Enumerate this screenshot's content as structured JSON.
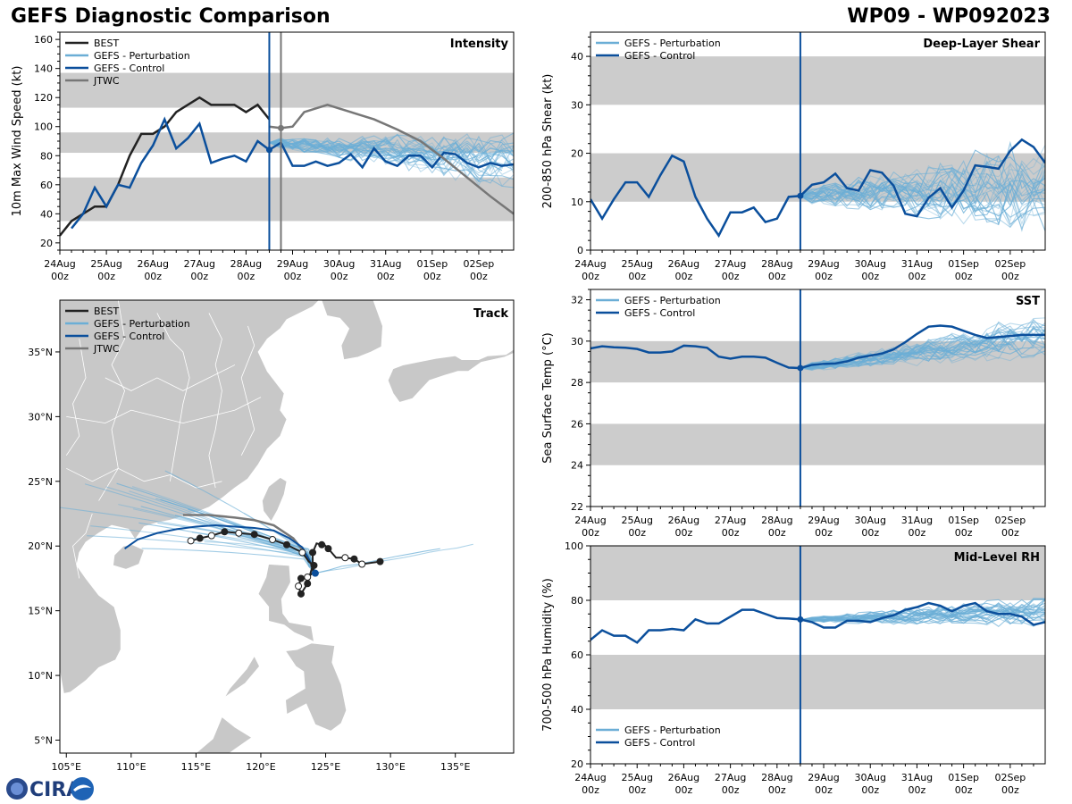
{
  "header": {
    "title_left": "GEFS Diagnostic Comparison",
    "title_right": "WP09 - WP092023"
  },
  "logo": {
    "text": "CIRA"
  },
  "colors": {
    "best": "#222222",
    "pert": "#6baed6",
    "control": "#0b4f9c",
    "jtwc": "#777777",
    "band": "#cccccc",
    "land": "#c8c8c8",
    "vline_fcst": "#0b4f9c",
    "vline_jtwc": "#777777"
  },
  "time_axis": {
    "min_day": 0,
    "max_day": 9.75,
    "init_day": 4.5,
    "ticks": [
      0,
      1,
      2,
      3,
      4,
      5,
      6,
      7,
      8,
      9
    ],
    "tick_labels": [
      "24Aug",
      "25Aug",
      "26Aug",
      "27Aug",
      "28Aug",
      "29Aug",
      "30Aug",
      "31Aug",
      "01Sep",
      "02Sep"
    ],
    "tick_sublabel": "00z"
  },
  "legend": {
    "best": "BEST",
    "pert": "GEFS - Perturbation",
    "control": "GEFS - Control",
    "jtwc": "JTWC"
  },
  "chart_data": [
    {
      "id": "intensity",
      "type": "line",
      "title": "Intensity",
      "ylabel": "10m Max Wind Speed (kt)",
      "ylim": [
        15,
        165
      ],
      "yticks": [
        20,
        40,
        60,
        80,
        100,
        120,
        140,
        160
      ],
      "minor": 5,
      "bands": [
        [
          35,
          65
        ],
        [
          82,
          96
        ],
        [
          113,
          137
        ]
      ],
      "jtwc_vline_day": 4.75,
      "series": [
        {
          "name": "BEST",
          "x": [
            0,
            0.25,
            0.5,
            0.75,
            1,
            1.25,
            1.5,
            1.75,
            2,
            2.25,
            2.5,
            2.75,
            3,
            3.25,
            3.5,
            3.75,
            4,
            4.25,
            4.5
          ],
          "y": [
            25,
            35,
            40,
            45,
            45,
            60,
            80,
            95,
            95,
            100,
            110,
            115,
            120,
            115,
            115,
            115,
            110,
            115,
            105
          ]
        },
        {
          "name": "GEFS - Control",
          "x": [
            0.25,
            0.5,
            0.75,
            1,
            1.25,
            1.5,
            1.75,
            2,
            2.25,
            2.5,
            2.75,
            3,
            3.25,
            3.5,
            3.75,
            4,
            4.25,
            4.5,
            4.75,
            5,
            5.25,
            5.5,
            5.75,
            6,
            6.25,
            6.5,
            6.75,
            7,
            7.25,
            7.5,
            7.75,
            8,
            8.25,
            8.5,
            8.75,
            9,
            9.25,
            9.5,
            9.75
          ],
          "y": [
            30,
            40,
            58,
            45,
            60,
            58,
            75,
            87,
            105,
            85,
            92,
            102,
            75,
            78,
            80,
            76,
            90,
            84,
            89,
            73,
            73,
            76,
            73,
            75,
            81,
            72,
            85,
            76,
            73,
            80,
            80,
            72,
            82,
            81,
            75,
            72,
            75,
            73,
            74
          ]
        },
        {
          "name": "JTWC",
          "x": [
            4.5,
            4.75,
            5,
            5.25,
            5.75,
            6.25,
            6.75,
            7.25,
            7.75,
            8.25,
            8.75,
            9.25,
            9.75
          ],
          "y": [
            100,
            99,
            100,
            110,
            115,
            110,
            105,
            98,
            90,
            78,
            65,
            52,
            40
          ]
        }
      ],
      "pert_start": 89,
      "pert_spread": 18,
      "pert_drift": -12
    },
    {
      "id": "shear",
      "type": "line",
      "title": "Deep-Layer Shear",
      "ylabel": "200-850 hPa Shear (kt)",
      "ylim": [
        0,
        45
      ],
      "yticks": [
        0,
        10,
        20,
        30,
        40
      ],
      "minor": 2,
      "bands": [
        [
          10,
          20
        ],
        [
          30,
          40
        ]
      ],
      "series": [
        {
          "name": "GEFS - Control",
          "x": [
            0,
            0.25,
            0.5,
            0.75,
            1,
            1.25,
            1.5,
            1.75,
            2,
            2.25,
            2.5,
            2.75,
            3,
            3.25,
            3.5,
            3.75,
            4,
            4.25,
            4.5,
            4.75,
            5,
            5.25,
            5.5,
            5.75,
            6,
            6.25,
            6.5,
            6.75,
            7,
            7.25,
            7.5,
            7.75,
            8,
            8.25,
            8.5,
            8.75,
            9,
            9.25,
            9.5,
            9.75
          ],
          "y": [
            10.5,
            6.5,
            10.5,
            14,
            14,
            11,
            15.5,
            19.5,
            18.3,
            11,
            6.5,
            3,
            7.8,
            7.8,
            8.8,
            5.8,
            6.5,
            11,
            11.2,
            13.5,
            14,
            15.8,
            12.8,
            12.3,
            16.5,
            16,
            13.3,
            7.5,
            7,
            10.8,
            12.8,
            8.8,
            12.3,
            17.5,
            17.2,
            16.8,
            20.5,
            22.8,
            21.3,
            18
          ]
        }
      ],
      "pert_start": 11.2,
      "pert_spread": 9,
      "pert_drift": 3
    },
    {
      "id": "sst",
      "type": "line",
      "title": "SST",
      "ylabel": "Sea Surface Temp (°C)",
      "ylim": [
        22,
        32.5
      ],
      "yticks": [
        22,
        24,
        26,
        28,
        30,
        32
      ],
      "minor": 0.5,
      "bands": [
        [
          24,
          26
        ],
        [
          28,
          30
        ]
      ],
      "series": [
        {
          "name": "GEFS - Control",
          "x": [
            0,
            0.25,
            0.5,
            0.75,
            1,
            1.25,
            1.5,
            1.75,
            2,
            2.25,
            2.5,
            2.75,
            3,
            3.25,
            3.5,
            3.75,
            4,
            4.25,
            4.5,
            4.75,
            5,
            5.25,
            5.5,
            5.75,
            6,
            6.25,
            6.5,
            6.75,
            7,
            7.25,
            7.5,
            7.75,
            8,
            8.25,
            8.5,
            8.75,
            9,
            9.25,
            9.5,
            9.75
          ],
          "y": [
            29.65,
            29.75,
            29.7,
            29.68,
            29.62,
            29.45,
            29.45,
            29.5,
            29.78,
            29.75,
            29.68,
            29.25,
            29.15,
            29.25,
            29.25,
            29.2,
            28.95,
            28.72,
            28.7,
            28.85,
            28.9,
            28.92,
            29.02,
            29.2,
            29.3,
            29.4,
            29.6,
            29.95,
            30.35,
            30.7,
            30.75,
            30.7,
            30.5,
            30.3,
            30.15,
            30.2,
            30.25,
            30.3,
            30.3,
            30.3
          ]
        }
      ],
      "pert_start": 28.7,
      "pert_spread": 1.0,
      "pert_drift": 1.5
    },
    {
      "id": "rh",
      "type": "line",
      "title": "Mid-Level RH",
      "ylabel": "700-500 hPa Humidity (%)",
      "ylim": [
        20,
        100
      ],
      "yticks": [
        20,
        40,
        60,
        80,
        100
      ],
      "minor": 5,
      "bands": [
        [
          40,
          60
        ],
        [
          80,
          100
        ]
      ],
      "series": [
        {
          "name": "GEFS - Control",
          "x": [
            0,
            0.25,
            0.5,
            0.75,
            1,
            1.25,
            1.5,
            1.75,
            2,
            2.25,
            2.5,
            2.75,
            3,
            3.25,
            3.5,
            3.75,
            4,
            4.25,
            4.5,
            4.75,
            5,
            5.25,
            5.5,
            5.75,
            6,
            6.25,
            6.5,
            6.75,
            7,
            7.25,
            7.5,
            7.75,
            8,
            8.25,
            8.5,
            8.75,
            9,
            9.25,
            9.5,
            9.75
          ],
          "y": [
            65.5,
            69,
            67,
            67,
            64.5,
            69,
            69,
            69.5,
            69,
            73,
            71.5,
            71.5,
            74,
            76.5,
            76.5,
            75,
            73.5,
            73.3,
            73,
            72,
            70,
            70,
            72.5,
            72.5,
            72,
            73.5,
            74.5,
            76.5,
            77.5,
            79,
            78,
            76,
            78,
            79,
            76,
            75,
            75,
            74,
            71,
            72
          ]
        }
      ],
      "pert_start": 72.8,
      "pert_spread": 5,
      "pert_drift": 3
    },
    {
      "id": "track",
      "type": "scatter",
      "title": "Track",
      "xlim": [
        104.5,
        139.5
      ],
      "ylim": [
        4,
        39
      ],
      "xticks": [
        105,
        110,
        115,
        120,
        125,
        130,
        135
      ],
      "xtick_labels": [
        "105°E",
        "110°E",
        "115°E",
        "120°E",
        "125°E",
        "130°E",
        "135°E"
      ],
      "yticks": [
        5,
        10,
        15,
        20,
        25,
        30,
        35
      ],
      "ytick_labels": [
        "5°N",
        "10°N",
        "15°N",
        "20°N",
        "25°N",
        "30°N",
        "35°N"
      ],
      "best_track": {
        "lon": [
          129.2,
          128.5,
          127.8,
          127.2,
          126.5,
          125.8,
          125.2,
          124.9,
          124.7,
          124.3,
          124.0,
          124.0,
          123.6,
          123.1,
          122.9,
          123.1,
          123.6,
          124.0,
          124.1,
          123.7,
          123.2,
          122.0,
          120.9,
          119.5,
          118.3,
          117.2,
          116.2,
          115.3,
          114.6
        ],
        "lat": [
          18.8,
          18.7,
          18.6,
          19.0,
          19.1,
          19.1,
          19.8,
          20.1,
          20.1,
          20.2,
          19.5,
          18.5,
          17.1,
          16.3,
          16.9,
          17.5,
          17.6,
          17.9,
          18.5,
          18.8,
          19.5,
          20.1,
          20.5,
          20.9,
          21.0,
          21.1,
          20.8,
          20.6,
          20.4
        ]
      },
      "control_track": {
        "lon": [
          124.2,
          123.8,
          123.2,
          122.2,
          121.0,
          119.5,
          118.0,
          116.5,
          115.0,
          113.5,
          112.0,
          110.5,
          109.5
        ],
        "lat": [
          17.9,
          18.8,
          19.9,
          20.6,
          21.2,
          21.4,
          21.5,
          21.6,
          21.5,
          21.3,
          21.0,
          20.5,
          19.8
        ]
      },
      "jtwc_track": {
        "lon": [
          124.2,
          123.6,
          122.5,
          121.0,
          119.5,
          118.0,
          116.0,
          114.0
        ],
        "lat": [
          17.9,
          19.2,
          20.6,
          21.6,
          22.0,
          22.2,
          22.4,
          22.4
        ]
      },
      "pert_origin": [
        124.2,
        17.9
      ]
    }
  ]
}
